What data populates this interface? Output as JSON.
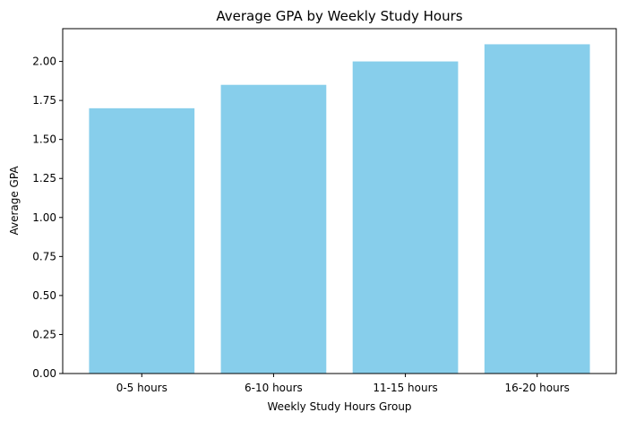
{
  "chart_data": {
    "type": "bar",
    "title": "Average GPA by Weekly Study Hours",
    "xlabel": "Weekly Study Hours Group",
    "ylabel": "Average GPA",
    "categories": [
      "0-5 hours",
      "6-10 hours",
      "11-15 hours",
      "16-20 hours"
    ],
    "values": [
      1.7,
      1.85,
      2.0,
      2.11
    ],
    "ylim": [
      0,
      2.21
    ],
    "yticks": [
      "0.00",
      "0.25",
      "0.50",
      "0.75",
      "1.00",
      "1.25",
      "1.50",
      "1.75",
      "2.00"
    ],
    "bar_color": "#87ceeb",
    "grid": false,
    "legend": "none"
  }
}
